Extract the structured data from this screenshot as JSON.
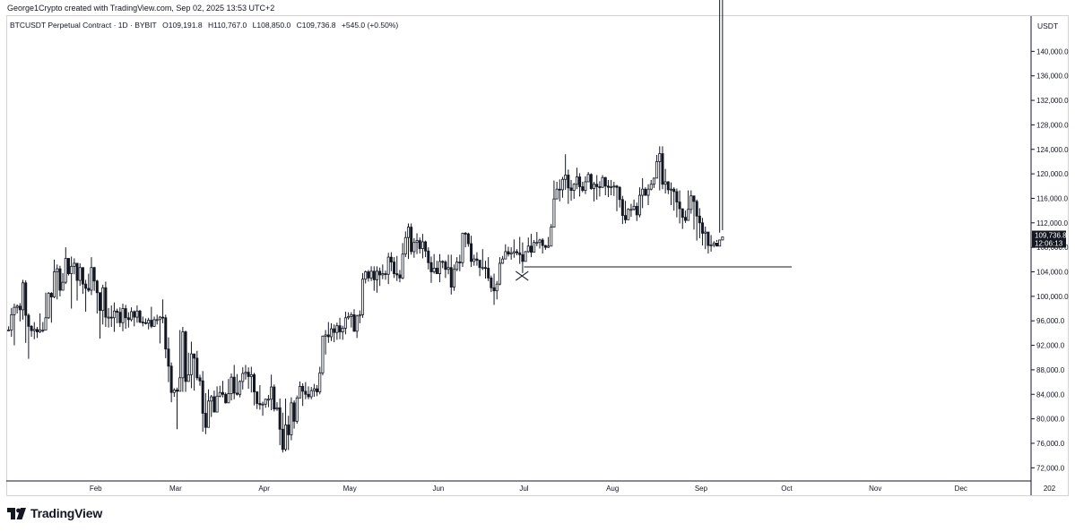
{
  "header": {
    "credit": "George1Crypto created with TradingView.com, Sep 02, 2025 13:53 UTC+2"
  },
  "legend": {
    "symbol": "BTCUSDT Perpetual Contract · 1D · BYBIT",
    "open": "O109,191.8",
    "high": "H110,767.0",
    "low": "L108,850.0",
    "close": "C109,736.8",
    "change": "+545.0 (+0.50%)"
  },
  "price_axis": {
    "currency": "USDT",
    "last_price": "109,736.8",
    "countdown": "12:06:13"
  },
  "footer": {
    "brand": "TradingView",
    "logo_icon": "tradingview-logo-icon"
  },
  "colors": {
    "candle": "#131722",
    "background": "#ffffff",
    "grid": "#d1d4dc",
    "label_bg": "#131722",
    "label_text": "#ffffff"
  },
  "chart_data": {
    "type": "candlestick",
    "ylim": [
      70000,
      144000
    ],
    "y_ticks": [
      72000,
      76000,
      80000,
      84000,
      88000,
      92000,
      96000,
      100000,
      104000,
      108000,
      112000,
      116000,
      120000,
      124000,
      128000,
      132000,
      136000,
      140000
    ],
    "x_ticks": [
      "Feb",
      "Mar",
      "Apr",
      "May",
      "Jun",
      "Jul",
      "Aug",
      "Sep",
      "Oct",
      "Nov",
      "Dec",
      "202"
    ],
    "grid": false,
    "start_date": "2025-01-01",
    "closes": [
      94500,
      97000,
      98200,
      98400,
      97800,
      102200,
      96900,
      95100,
      94400,
      94600,
      94200,
      94500,
      94500,
      96500,
      100500,
      99900,
      104000,
      104500,
      101000,
      102300,
      106200,
      103700,
      104900,
      105400,
      102600,
      104700,
      102000,
      101300,
      101000,
      104700,
      102500,
      100600,
      97700,
      101400,
      96600,
      96600,
      96500,
      97600,
      97400,
      95700,
      98000,
      96500,
      96200,
      97500,
      96600,
      97600,
      95800,
      95700,
      95600,
      96100,
      95100,
      96200,
      96200,
      96600,
      96500,
      91400,
      88600,
      84300,
      84700,
      84500,
      86700,
      94200,
      86100,
      87200,
      90600,
      89900,
      86700,
      86200,
      80900,
      78600,
      82900,
      83600,
      81100,
      83700,
      84300,
      84000,
      82600,
      84100,
      86800,
      84200,
      84000,
      86100,
      87400,
      87600,
      86900,
      87200,
      84400,
      82500,
      82300,
      82400,
      83200,
      83200,
      85200,
      81600,
      81800,
      78300,
      75000,
      79000,
      77400,
      82600,
      79600,
      83400,
      85300,
      84500,
      84000,
      83600,
      84600,
      84900,
      84400,
      87500,
      93500,
      93700,
      93400,
      94700,
      94100,
      95200,
      94200,
      94800,
      96500,
      96700,
      97000,
      94300,
      96800,
      97000,
      102800,
      104000,
      103000,
      104100,
      102700,
      104100,
      103500,
      103700,
      103600,
      106400,
      105600,
      103700,
      103500,
      103000,
      106900,
      109600,
      111300,
      107300,
      108800,
      109100,
      107800,
      108900,
      107400,
      105500,
      104000,
      104600,
      103700,
      105700,
      105600,
      104400,
      104700,
      101500,
      104400,
      105600,
      105500,
      110300,
      110200,
      108600,
      105700,
      106100,
      105900,
      104700,
      104700,
      104600,
      103000,
      101400,
      100900,
      102000,
      105400,
      106100,
      107300,
      106900,
      107100,
      107300,
      107100,
      106800,
      105700,
      107300,
      108200,
      107200,
      108800,
      108800,
      109200,
      108300,
      108000,
      108200,
      111300,
      115900,
      117500,
      117400,
      119100,
      119800,
      117700,
      117300,
      118300,
      119500,
      117900,
      117300,
      118700,
      119900,
      117600,
      118300,
      117900,
      117800,
      119400,
      118000,
      117800,
      117900,
      118000,
      117800,
      115800,
      113200,
      112500,
      114200,
      114200,
      114700,
      113300,
      116500,
      117500,
      116500,
      117500,
      118300,
      119300,
      122000,
      123300,
      118300,
      118700,
      117400,
      117500,
      117100,
      115400,
      114300,
      112900,
      112400,
      114200,
      116400,
      115500,
      113100,
      112000,
      110300,
      110500,
      108300,
      108400,
      108700,
      108200,
      109200,
      109700
    ],
    "highs": [
      95100,
      98100,
      98800,
      98700,
      98900,
      102700,
      102600,
      97200,
      95300,
      95800,
      95000,
      97200,
      95800,
      100600,
      100700,
      100700,
      106000,
      105200,
      105000,
      103800,
      108000,
      106000,
      106500,
      106200,
      105300,
      105400,
      103000,
      102700,
      103700,
      106400,
      104800,
      102700,
      100200,
      101900,
      102400,
      98100,
      98500,
      99000,
      98000,
      98200,
      98800,
      98600,
      97400,
      98200,
      97700,
      98500,
      97800,
      96700,
      96400,
      96500,
      98300,
      96700,
      97000,
      96800,
      99500,
      97000,
      93300,
      89200,
      85000,
      85100,
      94500,
      95000,
      94400,
      90800,
      92600,
      90600,
      91100,
      87200,
      87800,
      84200,
      84800,
      83900,
      84600,
      85300,
      85400,
      86200,
      84300,
      86500,
      87400,
      88800,
      87300,
      86300,
      88400,
      88800,
      88400,
      88500,
      87500,
      84500,
      85500,
      82800,
      83300,
      83900,
      87200,
      85600,
      82700,
      83300,
      81000,
      83300,
      80500,
      83500,
      83000,
      83800,
      86100,
      85800,
      86000,
      85300,
      85200,
      85700,
      85500,
      88500,
      93600,
      94500,
      95800,
      95600,
      95400,
      95700,
      96500,
      95200,
      97500,
      97400,
      97400,
      97900,
      97000,
      97700,
      103800,
      104200,
      104300,
      104900,
      104900,
      104900,
      104700,
      105200,
      104200,
      107100,
      107200,
      106400,
      106600,
      104300,
      108700,
      110600,
      111900,
      111900,
      109500,
      110300,
      109600,
      110200,
      109100,
      108000,
      106500,
      106900,
      105800,
      106900,
      105900,
      105900,
      106800,
      106800,
      105200,
      106400,
      106800,
      110400,
      110500,
      110400,
      109900,
      106800,
      107200,
      105600,
      107700,
      105800,
      106400,
      103400,
      103700,
      102500,
      106400,
      106600,
      108500,
      108100,
      108000,
      109300,
      107700,
      109700,
      108800,
      107400,
      109600,
      110200,
      109200,
      110500,
      109400,
      109500,
      108400,
      109700,
      111800,
      118900,
      118700,
      119100,
      119500,
      123200,
      120700,
      119000,
      118500,
      121000,
      120100,
      118700,
      119600,
      120300,
      120100,
      118700,
      119800,
      118800,
      119800,
      119500,
      119000,
      119000,
      118700,
      118200,
      118000,
      116400,
      115600,
      114400,
      115100,
      115800,
      115300,
      117800,
      119300,
      117800,
      118300,
      119000,
      119400,
      123100,
      124500,
      124500,
      120800,
      118800,
      118600,
      117800,
      117600,
      117300,
      114300,
      114000,
      117300,
      117300,
      116200,
      115800,
      114400,
      112800,
      111400,
      110200,
      110000,
      109000,
      109200,
      110400,
      110800
    ],
    "lows": [
      94400,
      93400,
      92000,
      97200,
      95900,
      96200,
      92400,
      89800,
      93400,
      93000,
      93200,
      94000,
      94100,
      94900,
      96300,
      95700,
      99700,
      99500,
      100000,
      101000,
      102000,
      103400,
      98000,
      103600,
      99300,
      101700,
      100400,
      97500,
      100700,
      100200,
      100900,
      97200,
      93100,
      95400,
      95000,
      94900,
      95000,
      94200,
      95600,
      95000,
      94300,
      94700,
      94900,
      95900,
      95100,
      95700,
      95600,
      95100,
      95400,
      94600,
      94800,
      95000,
      95400,
      92300,
      95600,
      89900,
      86000,
      82700,
      83600,
      78300,
      84500,
      84400,
      84400,
      87100,
      85000,
      84600,
      86300,
      85400,
      77900,
      77500,
      78700,
      80300,
      81100,
      82000,
      83500,
      83500,
      82500,
      83300,
      83000,
      83200,
      83800,
      83500,
      84800,
      86400,
      84900,
      84300,
      82200,
      81600,
      81500,
      80500,
      81800,
      81900,
      81400,
      81200,
      81300,
      75700,
      74500,
      74700,
      74900,
      76500,
      78400,
      79200,
      83400,
      82100,
      83200,
      83200,
      83200,
      83600,
      83700,
      84000,
      87100,
      90500,
      92400,
      92700,
      92500,
      92900,
      93000,
      92900,
      93800,
      96200,
      94900,
      94200,
      93200,
      95600,
      96500,
      102100,
      102400,
      102500,
      100900,
      100600,
      101700,
      102800,
      102700,
      102000,
      104100,
      103000,
      102500,
      102300,
      102800,
      106400,
      106100,
      106800,
      106300,
      106900,
      107000,
      106200,
      106400,
      104400,
      102200,
      103700,
      103700,
      102300,
      104600,
      103000,
      103600,
      100300,
      100900,
      104100,
      104100,
      104800,
      108000,
      108100,
      104800,
      105000,
      105000,
      103300,
      104300,
      102900,
      102500,
      100700,
      98600,
      99500,
      101800,
      105300,
      106700,
      106500,
      106000,
      106300,
      106700,
      105300,
      103800,
      105800,
      107100,
      106400,
      107400,
      108200,
      107800,
      107000,
      107600,
      107900,
      109000,
      112600,
      116500,
      115500,
      116100,
      117400,
      115100,
      115600,
      115900,
      117500,
      116300,
      117000,
      116700,
      119100,
      117400,
      115500,
      115800,
      116300,
      117700,
      116500,
      116200,
      116500,
      116400,
      113900,
      114500,
      111800,
      111900,
      113100,
      113000,
      114000,
      112300,
      112900,
      114400,
      116400,
      114900,
      117300,
      117700,
      120500,
      117300,
      117500,
      116800,
      116700,
      114900,
      114000,
      112900,
      111900,
      111000,
      112000,
      112700,
      113500,
      110900,
      109100,
      109500,
      108300,
      107700,
      107000,
      107300,
      108000,
      108900
    ]
  }
}
